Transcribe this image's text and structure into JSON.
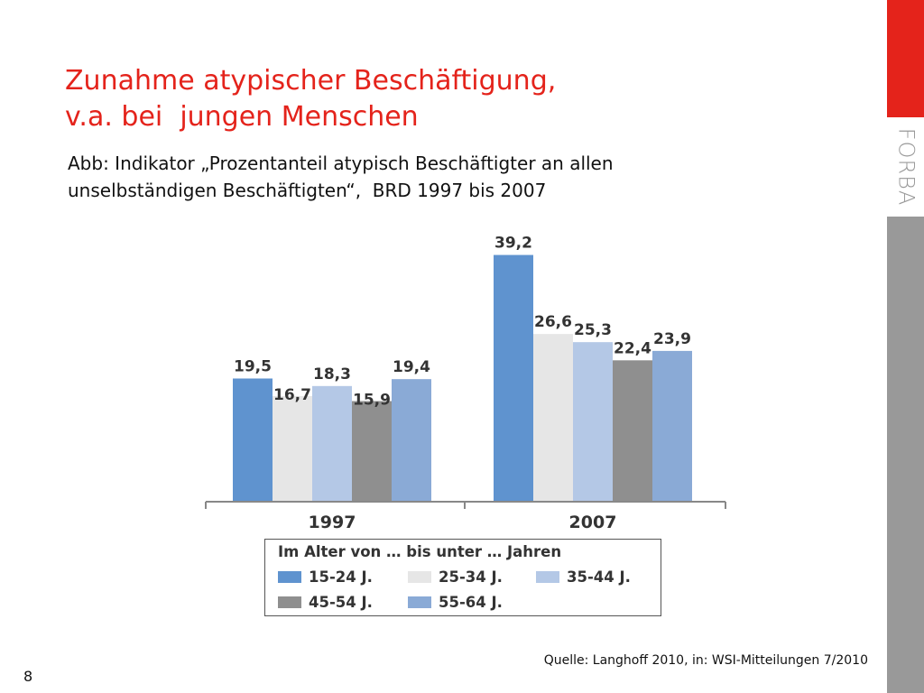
{
  "slide": {
    "title_lines": [
      "Zunahme atypischer Beschäftigung,",
      "v.a. bei  jungen Menschen"
    ],
    "subtitle_lines": [
      "Abb: Indikator „Prozentanteil atypisch Beschäftigter an allen",
      "unselbständigen Beschäftigten“,  BRD 1997 bis 2007"
    ],
    "source": "Quelle: Langhoff 2010, in: WSI-Mitteilungen 7/2010",
    "page_number": "8",
    "logo_text": "FORBA",
    "colors": {
      "title": "#e4231b",
      "sidebar_red": "#e4231b",
      "sidebar_grey": "#999999"
    }
  },
  "chart_data": {
    "type": "bar",
    "categories": [
      "1997",
      "2007"
    ],
    "series": [
      {
        "name": "15-24 J.",
        "values": [
          19.5,
          39.2
        ],
        "labels": [
          "19,5",
          "39,2"
        ],
        "color": "#5f93cf"
      },
      {
        "name": "25-34 J.",
        "values": [
          16.7,
          26.6
        ],
        "labels": [
          "16,7",
          "26,6"
        ],
        "color": "#e6e6e6"
      },
      {
        "name": "35-44 J.",
        "values": [
          18.3,
          25.3
        ],
        "labels": [
          "18,3",
          "25,3"
        ],
        "color": "#b4c8e6"
      },
      {
        "name": "45-54 J.",
        "values": [
          15.9,
          22.4
        ],
        "labels": [
          "15,9",
          "22,4"
        ],
        "color": "#8f8f8f"
      },
      {
        "name": "55-64 J.",
        "values": [
          19.4,
          23.9
        ],
        "labels": [
          "19,4",
          "23,9"
        ],
        "color": "#8aaad6"
      }
    ],
    "legend_title": "Im Alter von … bis unter … Jahren",
    "legend_position": "bottom",
    "ylim": [
      0,
      40
    ],
    "grid": false
  }
}
